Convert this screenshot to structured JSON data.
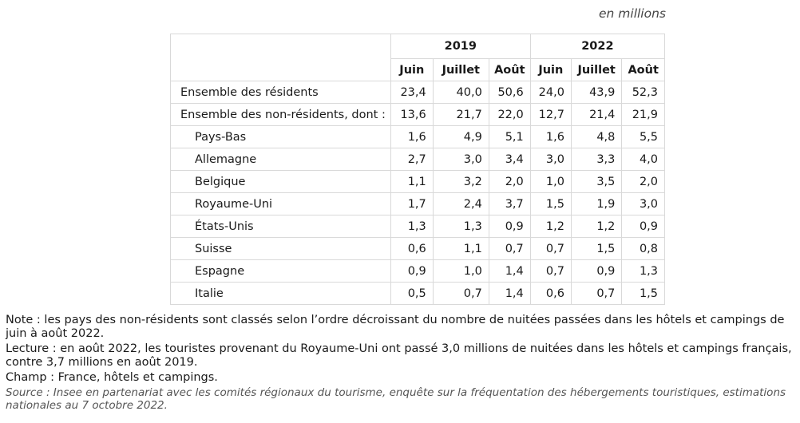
{
  "unit": "en millions",
  "years": [
    "2019",
    "2022"
  ],
  "months": [
    "Juin",
    "Juillet",
    "Août",
    "Juin",
    "Juillet",
    "Août"
  ],
  "rows": [
    {
      "label": "Ensemble des résidents",
      "indent": false,
      "values": [
        "23,4",
        "40,0",
        "50,6",
        "24,0",
        "43,9",
        "52,3"
      ]
    },
    {
      "label": "Ensemble des non-résidents, dont :",
      "indent": false,
      "values": [
        "13,6",
        "21,7",
        "22,0",
        "12,7",
        "21,4",
        "21,9"
      ]
    },
    {
      "label": "Pays-Bas",
      "indent": true,
      "values": [
        "1,6",
        "4,9",
        "5,1",
        "1,6",
        "4,8",
        "5,5"
      ]
    },
    {
      "label": "Allemagne",
      "indent": true,
      "values": [
        "2,7",
        "3,0",
        "3,4",
        "3,0",
        "3,3",
        "4,0"
      ]
    },
    {
      "label": "Belgique",
      "indent": true,
      "values": [
        "1,1",
        "3,2",
        "2,0",
        "1,0",
        "3,5",
        "2,0"
      ]
    },
    {
      "label": "Royaume-Uni",
      "indent": true,
      "values": [
        "1,7",
        "2,4",
        "3,7",
        "1,5",
        "1,9",
        "3,0"
      ]
    },
    {
      "label": "États-Unis",
      "indent": true,
      "values": [
        "1,3",
        "1,3",
        "0,9",
        "1,2",
        "1,2",
        "0,9"
      ]
    },
    {
      "label": "Suisse",
      "indent": true,
      "values": [
        "0,6",
        "1,1",
        "0,7",
        "0,7",
        "1,5",
        "0,8"
      ]
    },
    {
      "label": "Espagne",
      "indent": true,
      "values": [
        "0,9",
        "1,0",
        "1,4",
        "0,7",
        "0,9",
        "1,3"
      ]
    },
    {
      "label": "Italie",
      "indent": true,
      "values": [
        "0,5",
        "0,7",
        "1,4",
        "0,6",
        "0,7",
        "1,5"
      ]
    }
  ],
  "notes": {
    "note": "Note : les pays des non-résidents sont classés selon l’ordre décroissant du nombre de nuitées passées dans les hôtels et campings de juin à août 2022.",
    "lecture": "Lecture : en août 2022, les touristes provenant du Royaume-Uni ont passé 3,0 millions de nuitées dans les hôtels et campings français, contre 3,7 millions en août 2019.",
    "champ": "Champ : France, hôtels et campings.",
    "source": "Source : Insee en partenariat avec les comités régionaux du tourisme, enquête sur la fréquentation des hébergements touristiques, estimations nationales au 7 octobre 2022."
  }
}
